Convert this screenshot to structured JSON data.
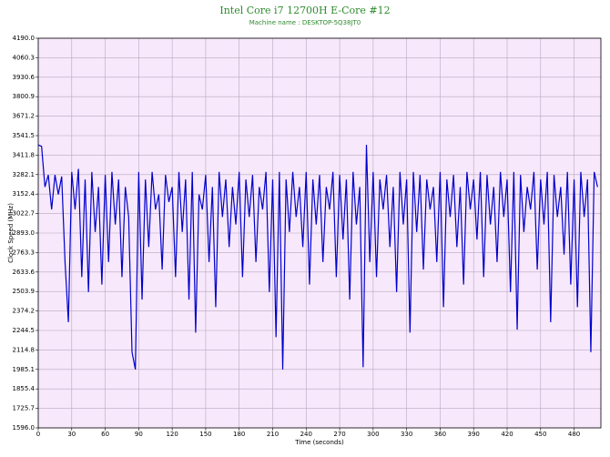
{
  "chart_data": {
    "type": "line",
    "title": "Intel Core i7 12700H E-Core #12",
    "subtitle": "Machine name : DESKTOP-5Q38JT0",
    "xlabel": "Time (seconds)",
    "ylabel": "Clock Speed (MHz)",
    "xlim": [
      0,
      504
    ],
    "ylim": [
      1596,
      4190
    ],
    "xticks": [
      0,
      30,
      60,
      90,
      120,
      150,
      180,
      210,
      240,
      270,
      300,
      330,
      360,
      390,
      420,
      450,
      480
    ],
    "yticks": [
      {
        "value": 1596,
        "label": "1596.0"
      },
      1725.7,
      1855.4,
      1985.1,
      2114.8,
      2244.5,
      2374.2,
      2503.9,
      2633.6,
      2763.3,
      {
        "value": 2893,
        "label": "2893.0"
      },
      3022.7,
      3152.4,
      3282.1,
      3411.8,
      3541.5,
      3671.2,
      3800.9,
      3930.6,
      4060.3,
      {
        "value": 4190,
        "label": "4190.0"
      }
    ],
    "grid": true,
    "background": "#f7e8fb",
    "series": [
      {
        "name": "Clock Speed",
        "color": "#0000cc",
        "x": [
          0,
          3,
          6,
          9,
          12,
          15,
          18,
          21,
          24,
          27,
          30,
          33,
          36,
          39,
          42,
          45,
          48,
          51,
          54,
          57,
          60,
          63,
          66,
          69,
          72,
          75,
          78,
          81,
          84,
          87,
          90,
          93,
          96,
          99,
          102,
          105,
          108,
          111,
          114,
          117,
          120,
          123,
          126,
          129,
          132,
          135,
          138,
          141,
          144,
          147,
          150,
          153,
          156,
          159,
          162,
          165,
          168,
          171,
          174,
          177,
          180,
          183,
          186,
          189,
          192,
          195,
          198,
          201,
          204,
          207,
          210,
          213,
          216,
          219,
          222,
          225,
          228,
          231,
          234,
          237,
          240,
          243,
          246,
          249,
          252,
          255,
          258,
          261,
          264,
          267,
          270,
          273,
          276,
          279,
          282,
          285,
          288,
          291,
          294,
          297,
          300,
          303,
          306,
          309,
          312,
          315,
          318,
          321,
          324,
          327,
          330,
          333,
          336,
          339,
          342,
          345,
          348,
          351,
          354,
          357,
          360,
          363,
          366,
          369,
          372,
          375,
          378,
          381,
          384,
          387,
          390,
          393,
          396,
          399,
          402,
          405,
          408,
          411,
          414,
          417,
          420,
          423,
          426,
          429,
          432,
          435,
          438,
          441,
          444,
          447,
          450,
          453,
          456,
          459,
          462,
          465,
          468,
          471,
          474,
          477,
          480,
          483,
          486,
          489,
          492,
          495,
          498,
          501
        ],
        "values": [
          3480,
          3470,
          3200,
          3280,
          3050,
          3280,
          3150,
          3270,
          2700,
          2300,
          3300,
          3050,
          3320,
          2600,
          3250,
          2500,
          3300,
          2900,
          3200,
          2550,
          3280,
          2700,
          3300,
          2950,
          3250,
          2600,
          3200,
          3000,
          2100,
          1985,
          3300,
          2450,
          3250,
          2800,
          3300,
          3050,
          3150,
          2650,
          3280,
          3100,
          3200,
          2600,
          3300,
          2900,
          3250,
          2450,
          3300,
          2230,
          3150,
          3050,
          3280,
          2700,
          3200,
          2400,
          3300,
          3000,
          3250,
          2800,
          3200,
          2950,
          3300,
          2600,
          3250,
          3000,
          3280,
          2700,
          3200,
          3050,
          3300,
          2500,
          3250,
          2200,
          3300,
          1985,
          3250,
          2900,
          3300,
          3000,
          3200,
          2800,
          3300,
          2550,
          3250,
          2950,
          3280,
          2700,
          3200,
          3050,
          3300,
          2600,
          3280,
          2850,
          3250,
          2450,
          3300,
          2950,
          3200,
          2000,
          3480,
          2700,
          3300,
          2600,
          3250,
          3050,
          3280,
          2800,
          3200,
          2500,
          3300,
          2950,
          3250,
          2230,
          3300,
          2900,
          3280,
          2650,
          3250,
          3050,
          3200,
          2700,
          3300,
          2400,
          3250,
          3000,
          3280,
          2800,
          3200,
          2550,
          3300,
          3050,
          3250,
          2850,
          3300,
          2600,
          3280,
          2950,
          3200,
          2700,
          3300,
          3000,
          3250,
          2500,
          3300,
          2250,
          3280,
          2900,
          3200,
          3050,
          3300,
          2650,
          3250,
          2950,
          3300,
          2300,
          3280,
          3000,
          3200,
          2750,
          3300,
          2550,
          3250,
          2400,
          3300,
          3000,
          3250,
          2100,
          3300,
          3200
        ]
      }
    ]
  }
}
